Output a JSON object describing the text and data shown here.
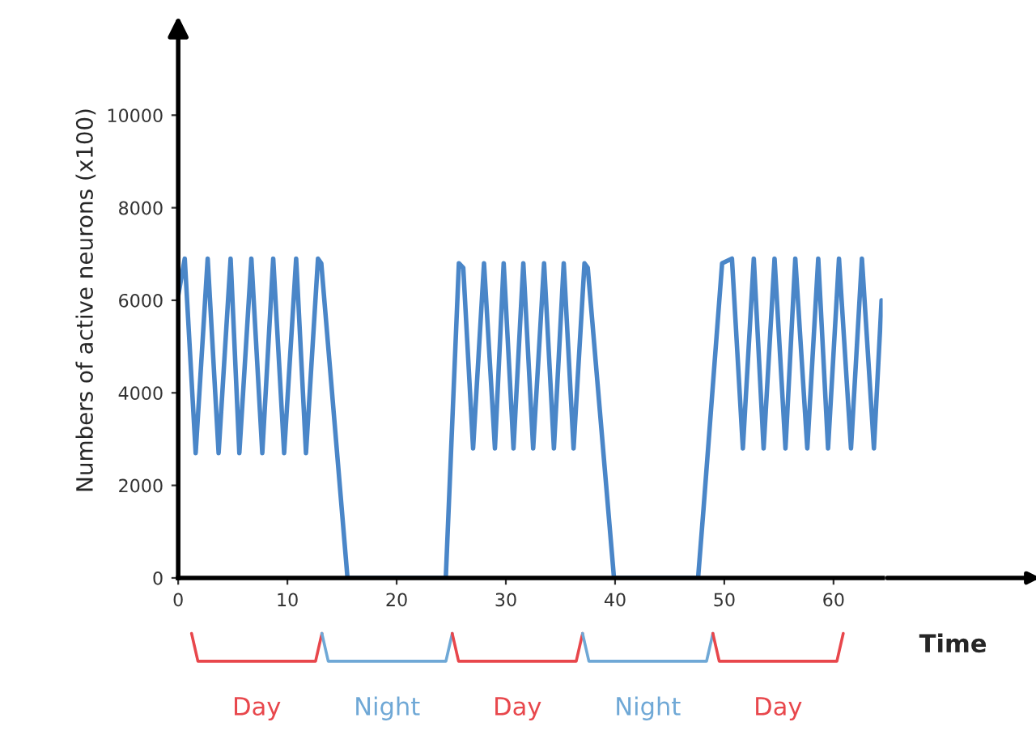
{
  "chart_data": {
    "type": "line",
    "xlabel": "Time",
    "ylabel": "Numbers of active neurons (x100)",
    "xlim": [
      0,
      64.5
    ],
    "ylim": [
      0,
      12000
    ],
    "xticks": [
      0,
      10,
      20,
      30,
      40,
      50,
      60
    ],
    "yticks": [
      0,
      2000,
      4000,
      6000,
      8000,
      10000
    ],
    "grid": false,
    "legend": false,
    "marker": "none",
    "line_style": "solid",
    "series": [
      {
        "color": "#4a86c8",
        "x": [
          0,
          0.6,
          1.6,
          2.7,
          3.7,
          4.8,
          5.6,
          6.7,
          7.7,
          8.7,
          9.7,
          10.8,
          11.7,
          12.8,
          13.1,
          15.5,
          24.5,
          25.7,
          26.1,
          27.0,
          28.0,
          29.0,
          29.8,
          30.7,
          31.6,
          32.5,
          33.5,
          34.4,
          35.3,
          36.2,
          37.2,
          37.5,
          39.9,
          47.6,
          48.1,
          49.8,
          50.7,
          51.7,
          52.7,
          53.6,
          54.6,
          55.6,
          56.5,
          57.6,
          58.6,
          59.5,
          60.5,
          61.6,
          62.6,
          63.7,
          64.4
        ],
        "values": [
          6100,
          6900,
          2700,
          6900,
          2700,
          6900,
          2700,
          6900,
          2700,
          6900,
          2700,
          6900,
          2700,
          6900,
          6800,
          0,
          0,
          6800,
          6700,
          2800,
          6800,
          2800,
          6800,
          2800,
          6800,
          2800,
          6800,
          2800,
          6800,
          2800,
          6800,
          6700,
          0,
          0,
          1500,
          6800,
          6900,
          2800,
          6900,
          2800,
          6900,
          2800,
          6900,
          2800,
          6900,
          2800,
          6900,
          2800,
          6900,
          2800,
          6000
        ]
      }
    ],
    "annotations": [
      "Day",
      "Night",
      "Day",
      "Night",
      "Day"
    ]
  }
}
